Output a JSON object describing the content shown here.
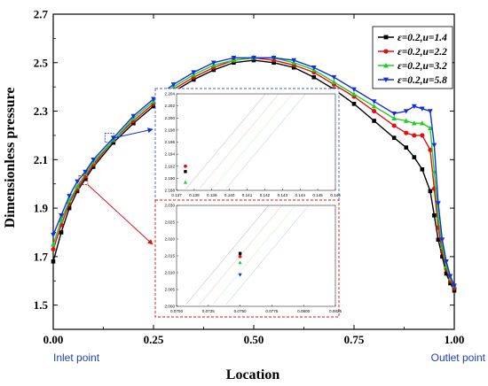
{
  "chart_data": {
    "type": "line",
    "title": "",
    "xlabel": "Location",
    "ylabel": "Dimensionless pressure",
    "xlim": [
      0,
      1
    ],
    "ylim": [
      1.4,
      2.7
    ],
    "xticks": [
      {
        "v": 0.0,
        "label": "0.00"
      },
      {
        "v": 0.25,
        "label": "0.25"
      },
      {
        "v": 0.5,
        "label": "0.50"
      },
      {
        "v": 0.75,
        "label": "0.75"
      },
      {
        "v": 1.0,
        "label": "1.00"
      }
    ],
    "yticks": [
      {
        "v": 1.5,
        "label": "1.5"
      },
      {
        "v": 1.7,
        "label": "1.7"
      },
      {
        "v": 1.9,
        "label": "1.9"
      },
      {
        "v": 2.1,
        "label": "2.1"
      },
      {
        "v": 2.3,
        "label": "2.3"
      },
      {
        "v": 2.5,
        "label": "2.5"
      },
      {
        "v": 2.7,
        "label": "2.7"
      }
    ],
    "annotations": {
      "inlet": "Inlet point",
      "outlet": "Outlet point"
    },
    "legend_position": "top-right",
    "series": [
      {
        "name": "ε=0.2,u=1.4",
        "color": "#000000",
        "marker": "square",
        "x": [
          0.0,
          0.02,
          0.04,
          0.06,
          0.08,
          0.1,
          0.15,
          0.2,
          0.25,
          0.3,
          0.35,
          0.4,
          0.45,
          0.5,
          0.55,
          0.6,
          0.65,
          0.7,
          0.75,
          0.8,
          0.85,
          0.88,
          0.9,
          0.92,
          0.94,
          0.95,
          0.96,
          0.97,
          0.98,
          0.99,
          1.0
        ],
        "y": [
          1.68,
          1.8,
          1.9,
          1.97,
          2.02,
          2.07,
          2.17,
          2.25,
          2.32,
          2.38,
          2.43,
          2.47,
          2.5,
          2.51,
          2.5,
          2.48,
          2.44,
          2.39,
          2.33,
          2.26,
          2.19,
          2.15,
          2.11,
          2.06,
          1.97,
          1.87,
          1.77,
          1.7,
          1.63,
          1.59,
          1.56
        ]
      },
      {
        "name": "ε=0.2,u=2.2",
        "color": "#e01010",
        "marker": "circle",
        "x": [
          0.0,
          0.02,
          0.04,
          0.06,
          0.08,
          0.1,
          0.15,
          0.2,
          0.25,
          0.3,
          0.35,
          0.4,
          0.45,
          0.5,
          0.55,
          0.6,
          0.65,
          0.7,
          0.75,
          0.8,
          0.85,
          0.88,
          0.9,
          0.92,
          0.94,
          0.95,
          0.96,
          0.97,
          0.98,
          0.99,
          1.0
        ],
        "y": [
          1.73,
          1.83,
          1.92,
          1.98,
          2.03,
          2.08,
          2.18,
          2.26,
          2.33,
          2.39,
          2.44,
          2.48,
          2.51,
          2.52,
          2.51,
          2.49,
          2.46,
          2.41,
          2.36,
          2.3,
          2.24,
          2.21,
          2.2,
          2.2,
          2.14,
          1.98,
          1.82,
          1.72,
          1.65,
          1.6,
          1.57
        ]
      },
      {
        "name": "ε=0.2,u=3.2",
        "color": "#22cc22",
        "marker": "triangle-up",
        "x": [
          0.0,
          0.02,
          0.04,
          0.06,
          0.08,
          0.1,
          0.15,
          0.2,
          0.25,
          0.3,
          0.35,
          0.4,
          0.45,
          0.5,
          0.55,
          0.6,
          0.65,
          0.7,
          0.75,
          0.8,
          0.85,
          0.88,
          0.9,
          0.92,
          0.94,
          0.95,
          0.96,
          0.97,
          0.98,
          0.99,
          1.0
        ],
        "y": [
          1.75,
          1.85,
          1.93,
          1.99,
          2.04,
          2.09,
          2.18,
          2.27,
          2.34,
          2.4,
          2.45,
          2.49,
          2.51,
          2.52,
          2.52,
          2.5,
          2.47,
          2.42,
          2.37,
          2.32,
          2.27,
          2.26,
          2.25,
          2.25,
          2.23,
          2.05,
          1.86,
          1.74,
          1.66,
          1.61,
          1.58
        ]
      },
      {
        "name": "ε=0.2,u=5.8",
        "color": "#1030e0",
        "marker": "triangle-down",
        "x": [
          0.0,
          0.02,
          0.04,
          0.06,
          0.08,
          0.1,
          0.15,
          0.2,
          0.25,
          0.3,
          0.35,
          0.4,
          0.45,
          0.5,
          0.55,
          0.6,
          0.65,
          0.7,
          0.75,
          0.8,
          0.85,
          0.88,
          0.9,
          0.92,
          0.94,
          0.95,
          0.96,
          0.97,
          0.98,
          0.99,
          1.0
        ],
        "y": [
          1.79,
          1.87,
          1.95,
          2.01,
          2.05,
          2.1,
          2.19,
          2.28,
          2.35,
          2.41,
          2.46,
          2.5,
          2.52,
          2.52,
          2.52,
          2.51,
          2.48,
          2.44,
          2.39,
          2.34,
          2.29,
          2.3,
          2.32,
          2.31,
          2.3,
          2.16,
          1.92,
          1.77,
          1.68,
          1.62,
          1.58
        ]
      }
    ],
    "insets": [
      {
        "position": "upper",
        "xticks": [
          "0.137",
          "0.138",
          "0.139",
          "0.140",
          "0.141",
          "0.142",
          "0.143",
          "0.144",
          "0.145",
          "0.146"
        ],
        "yticks": [
          "2.188",
          "2.190",
          "2.192",
          "2.194",
          "2.196",
          "2.198",
          "2.200",
          "2.202",
          "2.204"
        ],
        "points": [
          {
            "series": 0,
            "x": 0.1375,
            "y": 2.1905
          },
          {
            "series": 1,
            "x": 0.1375,
            "y": 2.1915
          },
          {
            "series": 2,
            "x": 0.1375,
            "y": 2.1885
          }
        ]
      },
      {
        "position": "lower",
        "xticks": [
          "0.0700",
          "0.0725",
          "0.0750",
          "0.0775",
          "0.0800",
          "0.0825"
        ],
        "yticks": [
          "2.000",
          "2.005",
          "2.010",
          "2.015",
          "2.020",
          "2.025",
          "2.030"
        ],
        "points": [
          {
            "series": 0,
            "x": 0.075,
            "y": 2.0153
          },
          {
            "series": 1,
            "x": 0.075,
            "y": 2.0143
          },
          {
            "series": 2,
            "x": 0.075,
            "y": 2.0123
          },
          {
            "series": 3,
            "x": 0.075,
            "y": 2.0083
          }
        ]
      }
    ]
  }
}
